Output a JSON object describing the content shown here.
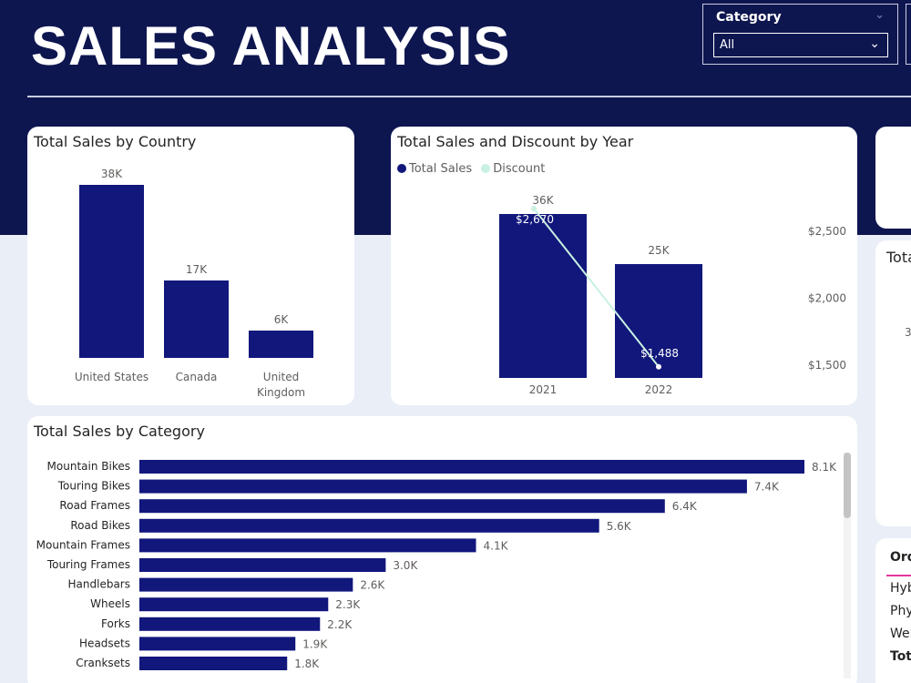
{
  "page": {
    "title": "SALES ANALYSIS"
  },
  "slicer": {
    "label": "Category",
    "value": "All"
  },
  "colors": {
    "header": "#0e1650",
    "bar": "#11177b",
    "discount_line": "#c9f1e2",
    "background": "#e9eef7"
  },
  "right_panel": {
    "card_title_partial": "Tota",
    "card_value_partial": "3",
    "table_header_partial": "Ord",
    "rows_partial": [
      "Hyb",
      "Phy",
      "Wel"
    ],
    "total_partial": "Tota"
  },
  "chart_data": [
    {
      "type": "bar",
      "title": "Total Sales by Country",
      "categories": [
        "United States",
        "Canada",
        "United Kingdom"
      ],
      "values": [
        38000,
        17000,
        6000
      ],
      "data_labels": [
        "38K",
        "17K",
        "6K"
      ]
    },
    {
      "type": "bar",
      "title": "Total Sales and Discount by Year",
      "categories": [
        "2021",
        "2022"
      ],
      "series": [
        {
          "name": "Total Sales",
          "values": [
            36000,
            25000
          ],
          "data_labels": [
            "36K",
            "25K"
          ]
        },
        {
          "name": "Discount",
          "values": [
            2670,
            1488
          ],
          "data_labels": [
            "$2,670",
            "$1,488"
          ],
          "axis": "secondary"
        }
      ],
      "secondary_axis_ticks": [
        "$1,500",
        "$2,000",
        "$2,500"
      ],
      "secondary_ylim": [
        1300,
        2800
      ]
    },
    {
      "type": "bar",
      "orientation": "horizontal",
      "title": "Total Sales by Category",
      "categories": [
        "Mountain Bikes",
        "Touring Bikes",
        "Road Frames",
        "Road Bikes",
        "Mountain Frames",
        "Touring Frames",
        "Handlebars",
        "Wheels",
        "Forks",
        "Headsets",
        "Cranksets"
      ],
      "values": [
        8100,
        7400,
        6400,
        5600,
        4100,
        3000,
        2600,
        2300,
        2200,
        1900,
        1800
      ],
      "data_labels": [
        "8.1K",
        "7.4K",
        "6.4K",
        "5.6K",
        "4.1K",
        "3.0K",
        "2.6K",
        "2.3K",
        "2.2K",
        "1.9K",
        "1.8K"
      ]
    }
  ]
}
